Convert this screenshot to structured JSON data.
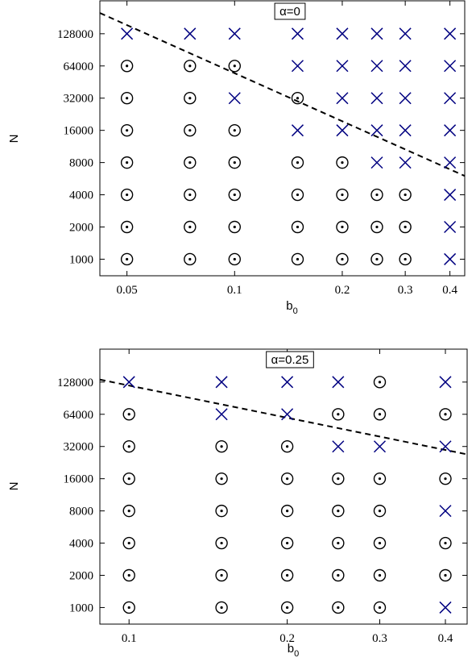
{
  "chart_data": [
    {
      "type": "scatter",
      "title": "α=0",
      "xlabel": "b",
      "xlabel_sub": "0",
      "ylabel": "N",
      "xscale": "log",
      "yscale": "log2",
      "xlim": [
        0.042,
        0.44
      ],
      "ylim": [
        700,
        260000
      ],
      "xticks": [
        0.05,
        0.1,
        0.2,
        0.3,
        0.4
      ],
      "xtick_labels": [
        "0.05",
        "0.1",
        "0.2",
        "0.3",
        "0.4"
      ],
      "yticks": [
        1000,
        2000,
        4000,
        8000,
        16000,
        32000,
        64000,
        128000
      ],
      "ytick_labels": [
        "1000",
        "2000",
        "4000",
        "8000",
        "16000",
        "32000",
        "64000",
        "128000"
      ],
      "x": [
        0.05,
        0.075,
        0.1,
        0.15,
        0.2,
        0.25,
        0.3,
        0.4
      ],
      "series": [
        {
          "marker": "cross",
          "color": "#000080",
          "points": [
            [
              0.05,
              128000
            ],
            [
              0.075,
              128000
            ],
            [
              0.1,
              128000
            ],
            [
              0.15,
              128000
            ],
            [
              0.2,
              128000
            ],
            [
              0.25,
              128000
            ],
            [
              0.3,
              128000
            ],
            [
              0.4,
              128000
            ],
            [
              0.15,
              64000
            ],
            [
              0.2,
              64000
            ],
            [
              0.25,
              64000
            ],
            [
              0.3,
              64000
            ],
            [
              0.4,
              64000
            ],
            [
              0.1,
              32000
            ],
            [
              0.2,
              32000
            ],
            [
              0.25,
              32000
            ],
            [
              0.3,
              32000
            ],
            [
              0.4,
              32000
            ],
            [
              0.15,
              16000
            ],
            [
              0.2,
              16000
            ],
            [
              0.25,
              16000
            ],
            [
              0.3,
              16000
            ],
            [
              0.4,
              16000
            ],
            [
              0.25,
              8000
            ],
            [
              0.3,
              8000
            ],
            [
              0.4,
              8000
            ],
            [
              0.4,
              4000
            ],
            [
              0.4,
              2000
            ],
            [
              0.4,
              1000
            ]
          ]
        },
        {
          "marker": "circle-dot",
          "color": "#000000",
          "points": [
            [
              0.05,
              64000
            ],
            [
              0.075,
              64000
            ],
            [
              0.1,
              64000
            ],
            [
              0.05,
              32000
            ],
            [
              0.075,
              32000
            ],
            [
              0.15,
              32000
            ],
            [
              0.05,
              16000
            ],
            [
              0.075,
              16000
            ],
            [
              0.1,
              16000
            ],
            [
              0.05,
              8000
            ],
            [
              0.075,
              8000
            ],
            [
              0.1,
              8000
            ],
            [
              0.15,
              8000
            ],
            [
              0.2,
              8000
            ],
            [
              0.05,
              4000
            ],
            [
              0.075,
              4000
            ],
            [
              0.1,
              4000
            ],
            [
              0.15,
              4000
            ],
            [
              0.2,
              4000
            ],
            [
              0.25,
              4000
            ],
            [
              0.3,
              4000
            ],
            [
              0.05,
              2000
            ],
            [
              0.075,
              2000
            ],
            [
              0.1,
              2000
            ],
            [
              0.15,
              2000
            ],
            [
              0.2,
              2000
            ],
            [
              0.25,
              2000
            ],
            [
              0.3,
              2000
            ],
            [
              0.05,
              1000
            ],
            [
              0.075,
              1000
            ],
            [
              0.1,
              1000
            ],
            [
              0.15,
              1000
            ],
            [
              0.2,
              1000
            ],
            [
              0.25,
              1000
            ],
            [
              0.3,
              1000
            ]
          ]
        }
      ],
      "boundary_line": {
        "style": "dashed",
        "points": [
          [
            0.042,
            200000
          ],
          [
            0.44,
            6000
          ]
        ]
      },
      "grid": false
    },
    {
      "type": "scatter",
      "title": "α=0.25",
      "xlabel": "b",
      "xlabel_sub": "0",
      "ylabel": "N",
      "xscale": "log",
      "yscale": "log2",
      "xlim": [
        0.088,
        0.44
      ],
      "ylim": [
        700,
        260000
      ],
      "xticks": [
        0.1,
        0.2,
        0.3,
        0.4
      ],
      "xtick_labels": [
        "0.1",
        "0.2",
        "0.3",
        "0.4"
      ],
      "yticks": [
        1000,
        2000,
        4000,
        8000,
        16000,
        32000,
        64000,
        128000
      ],
      "ytick_labels": [
        "1000",
        "2000",
        "4000",
        "8000",
        "16000",
        "32000",
        "64000",
        "128000"
      ],
      "x": [
        0.1,
        0.15,
        0.2,
        0.25,
        0.3,
        0.4
      ],
      "series": [
        {
          "marker": "cross",
          "color": "#000080",
          "points": [
            [
              0.1,
              128000
            ],
            [
              0.15,
              128000
            ],
            [
              0.2,
              128000
            ],
            [
              0.25,
              128000
            ],
            [
              0.4,
              128000
            ],
            [
              0.15,
              64000
            ],
            [
              0.2,
              64000
            ],
            [
              0.25,
              32000
            ],
            [
              0.3,
              32000
            ],
            [
              0.4,
              32000
            ],
            [
              0.4,
              8000
            ],
            [
              0.4,
              1000
            ]
          ]
        },
        {
          "marker": "circle-dot",
          "color": "#000000",
          "points": [
            [
              0.3,
              128000
            ],
            [
              0.1,
              64000
            ],
            [
              0.25,
              64000
            ],
            [
              0.3,
              64000
            ],
            [
              0.4,
              64000
            ],
            [
              0.1,
              32000
            ],
            [
              0.15,
              32000
            ],
            [
              0.2,
              32000
            ],
            [
              0.1,
              16000
            ],
            [
              0.15,
              16000
            ],
            [
              0.2,
              16000
            ],
            [
              0.25,
              16000
            ],
            [
              0.3,
              16000
            ],
            [
              0.4,
              16000
            ],
            [
              0.1,
              8000
            ],
            [
              0.15,
              8000
            ],
            [
              0.2,
              8000
            ],
            [
              0.25,
              8000
            ],
            [
              0.3,
              8000
            ],
            [
              0.1,
              4000
            ],
            [
              0.15,
              4000
            ],
            [
              0.2,
              4000
            ],
            [
              0.25,
              4000
            ],
            [
              0.3,
              4000
            ],
            [
              0.4,
              4000
            ],
            [
              0.1,
              2000
            ],
            [
              0.15,
              2000
            ],
            [
              0.2,
              2000
            ],
            [
              0.25,
              2000
            ],
            [
              0.3,
              2000
            ],
            [
              0.4,
              2000
            ],
            [
              0.1,
              1000
            ],
            [
              0.15,
              1000
            ],
            [
              0.2,
              1000
            ],
            [
              0.25,
              1000
            ],
            [
              0.3,
              1000
            ]
          ]
        }
      ],
      "boundary_line": {
        "style": "dashed",
        "points": [
          [
            0.088,
            135000
          ],
          [
            0.44,
            27000
          ]
        ]
      },
      "grid": false
    }
  ]
}
